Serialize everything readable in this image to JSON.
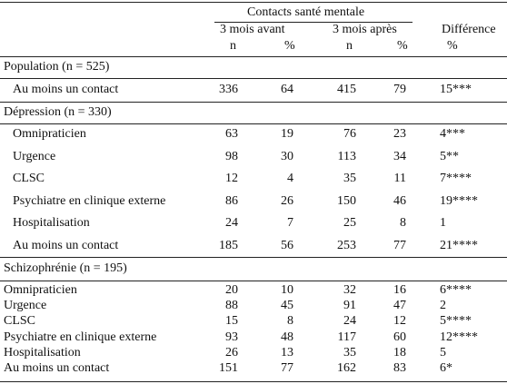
{
  "header": {
    "title": "Contacts santé mentale",
    "before": "3 mois avant",
    "after": "3 mois après",
    "difference": "Différence",
    "subheaders": [
      "n",
      "%",
      "n",
      "%",
      "%"
    ]
  },
  "sections": [
    {
      "title": "Population (n = 525)",
      "rows": [
        [
          "Au moins un contact",
          336,
          64,
          415,
          79,
          "15***"
        ]
      ]
    },
    {
      "title": "Dépression (n = 330)",
      "rows": [
        [
          "Omnipraticien",
          63,
          19,
          76,
          23,
          "4***"
        ],
        [
          "Urgence",
          98,
          30,
          113,
          34,
          "5**"
        ],
        [
          "CLSC",
          12,
          4,
          35,
          11,
          "7****"
        ],
        [
          "Psychiatre en clinique externe",
          86,
          26,
          150,
          46,
          "19****"
        ],
        [
          "Hospitalisation",
          24,
          7,
          25,
          8,
          "1"
        ],
        [
          "Au moins un contact",
          185,
          56,
          253,
          77,
          "21****"
        ]
      ]
    },
    {
      "title": "Schizophrénie (n = 195)",
      "rows": [
        [
          "Omnipraticien",
          20,
          10,
          32,
          16,
          "6****"
        ],
        [
          "Urgence",
          88,
          45,
          91,
          47,
          "2"
        ],
        [
          "CLSC",
          15,
          8,
          24,
          12,
          "5****"
        ],
        [
          "Psychiatre en clinique externe",
          93,
          48,
          117,
          60,
          "12****"
        ],
        [
          "Hospitalisation",
          26,
          13,
          35,
          18,
          "5"
        ],
        [
          "Au moins un contact",
          151,
          77,
          162,
          83,
          "6*"
        ]
      ]
    }
  ]
}
